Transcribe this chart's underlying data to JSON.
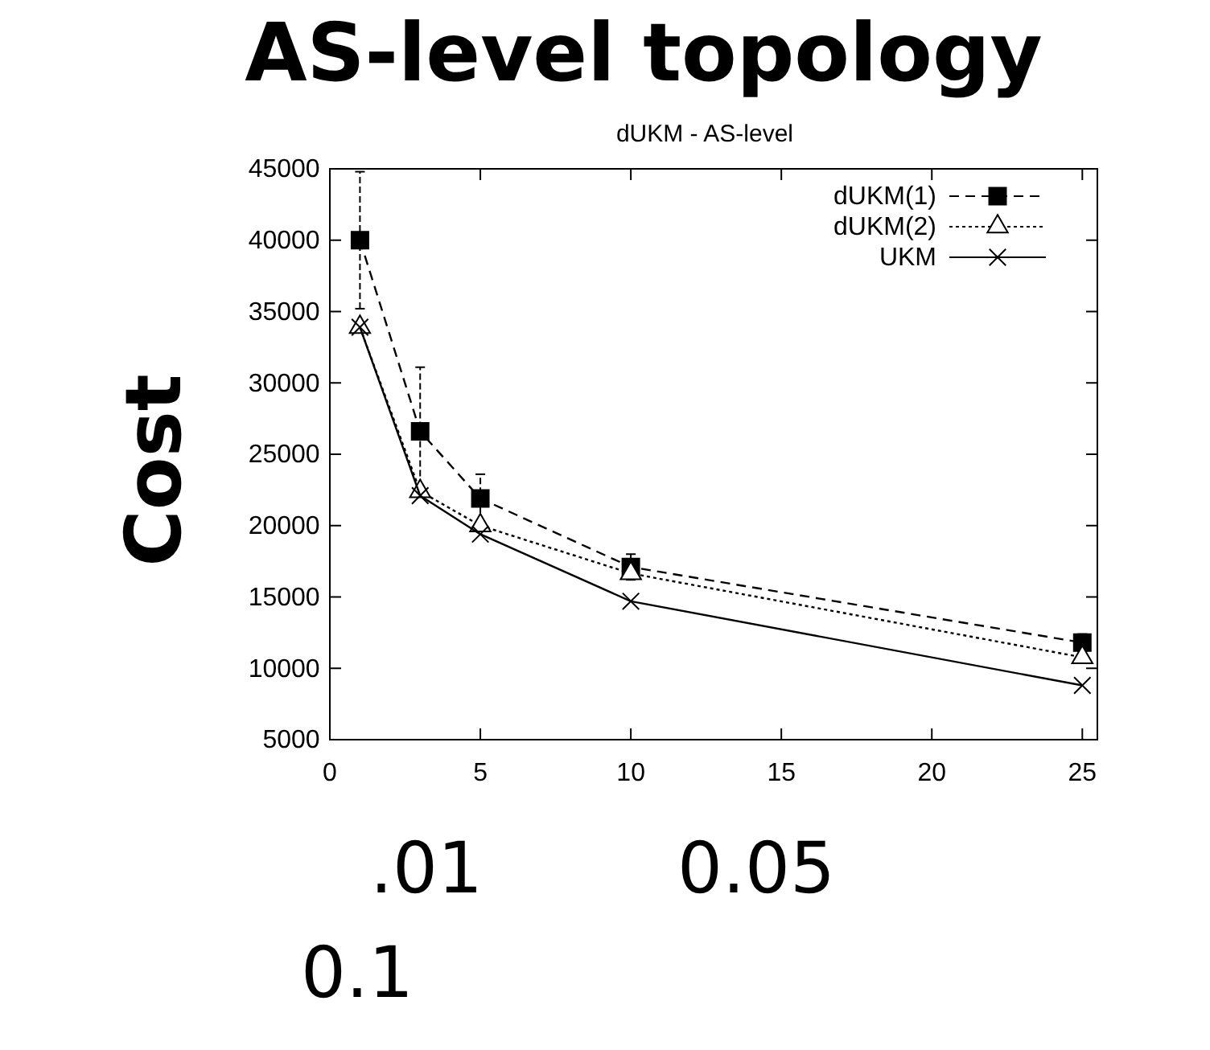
{
  "chart_data": {
    "type": "line",
    "title": "AS-level topology",
    "subtitle": "dUKM - AS-level",
    "ylabel": "Cost",
    "x": [
      1,
      3,
      5,
      10,
      25
    ],
    "xlim": [
      0,
      25.5
    ],
    "xticks": [
      0,
      5,
      10,
      15,
      20,
      25
    ],
    "ylim": [
      5000,
      45000
    ],
    "yticks": [
      5000,
      10000,
      15000,
      20000,
      25000,
      30000,
      35000,
      40000,
      45000
    ],
    "legend": "top right",
    "grid": false,
    "series": [
      {
        "name": "dUKM(1)",
        "color": "#000000",
        "marker": "square",
        "line_style": "dashed",
        "values": [
          40000,
          26600,
          21900,
          17100,
          11800
        ],
        "errors": [
          4800,
          4500,
          1700,
          900,
          600
        ]
      },
      {
        "name": "dUKM(2)",
        "color": "#000000",
        "marker": "triangle",
        "line_style": "dotted",
        "values": [
          33900,
          22400,
          20000,
          16650,
          10770
        ]
      },
      {
        "name": "UKM",
        "color": "#000000",
        "marker": "cross",
        "line_style": "solid",
        "values": [
          33900,
          22100,
          19400,
          14700,
          8800
        ]
      }
    ],
    "annotations": [
      ".01",
      "0.05",
      "0.1"
    ]
  }
}
